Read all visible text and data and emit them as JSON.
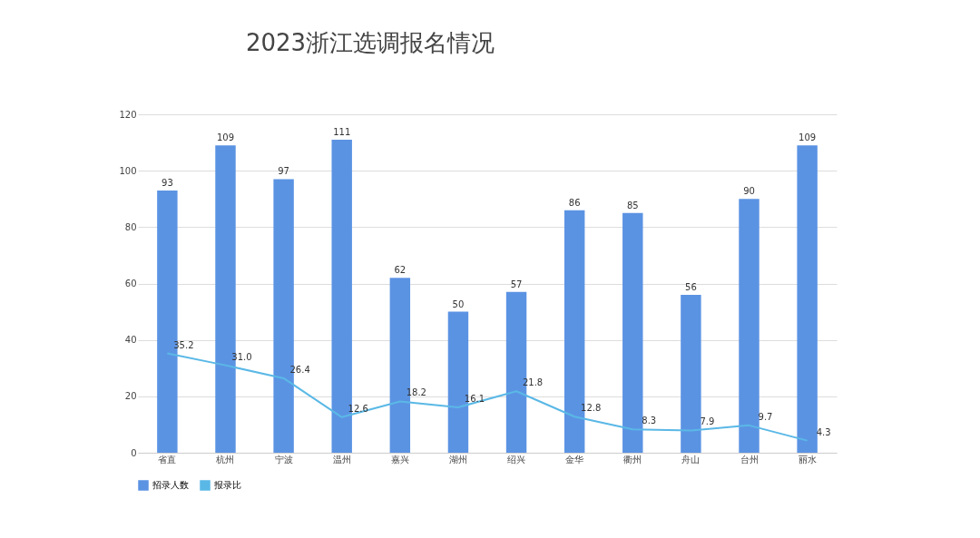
{
  "chart_data": {
    "type": "bar",
    "title": "2023浙江选调报名情况",
    "categories": [
      "省直",
      "杭州",
      "宁波",
      "温州",
      "嘉兴",
      "湖州",
      "绍兴",
      "金华",
      "衢州",
      "舟山",
      "台州",
      "丽水"
    ],
    "series": [
      {
        "name": "招录人数",
        "color": "#5b93e3",
        "values": [
          93,
          109,
          97,
          111,
          62,
          50,
          57,
          86,
          85,
          56,
          90,
          109
        ],
        "value_labels": [
          "93",
          "109",
          "97",
          "111",
          "62",
          "50",
          "57",
          "86",
          "85",
          "56",
          "90",
          "109"
        ]
      },
      {
        "name": "报录比",
        "type": "line",
        "color": "#5ab8e6",
        "values": [
          35.2,
          31.0,
          26.4,
          12.6,
          18.2,
          16.1,
          21.8,
          12.8,
          8.3,
          7.9,
          9.7,
          4.3
        ],
        "value_labels": [
          "35.2",
          "31.0",
          "26.4",
          "12.6",
          "18.2",
          "16.1",
          "21.8",
          "12.8",
          "8.3",
          "7.9",
          "9.7",
          "4.3"
        ]
      }
    ],
    "ylim": [
      0,
      120
    ],
    "yticks": [
      0,
      20,
      40,
      60,
      80,
      100,
      120
    ],
    "grid": "y",
    "legend": "bottom",
    "marker": "none",
    "line_style": "solid"
  }
}
